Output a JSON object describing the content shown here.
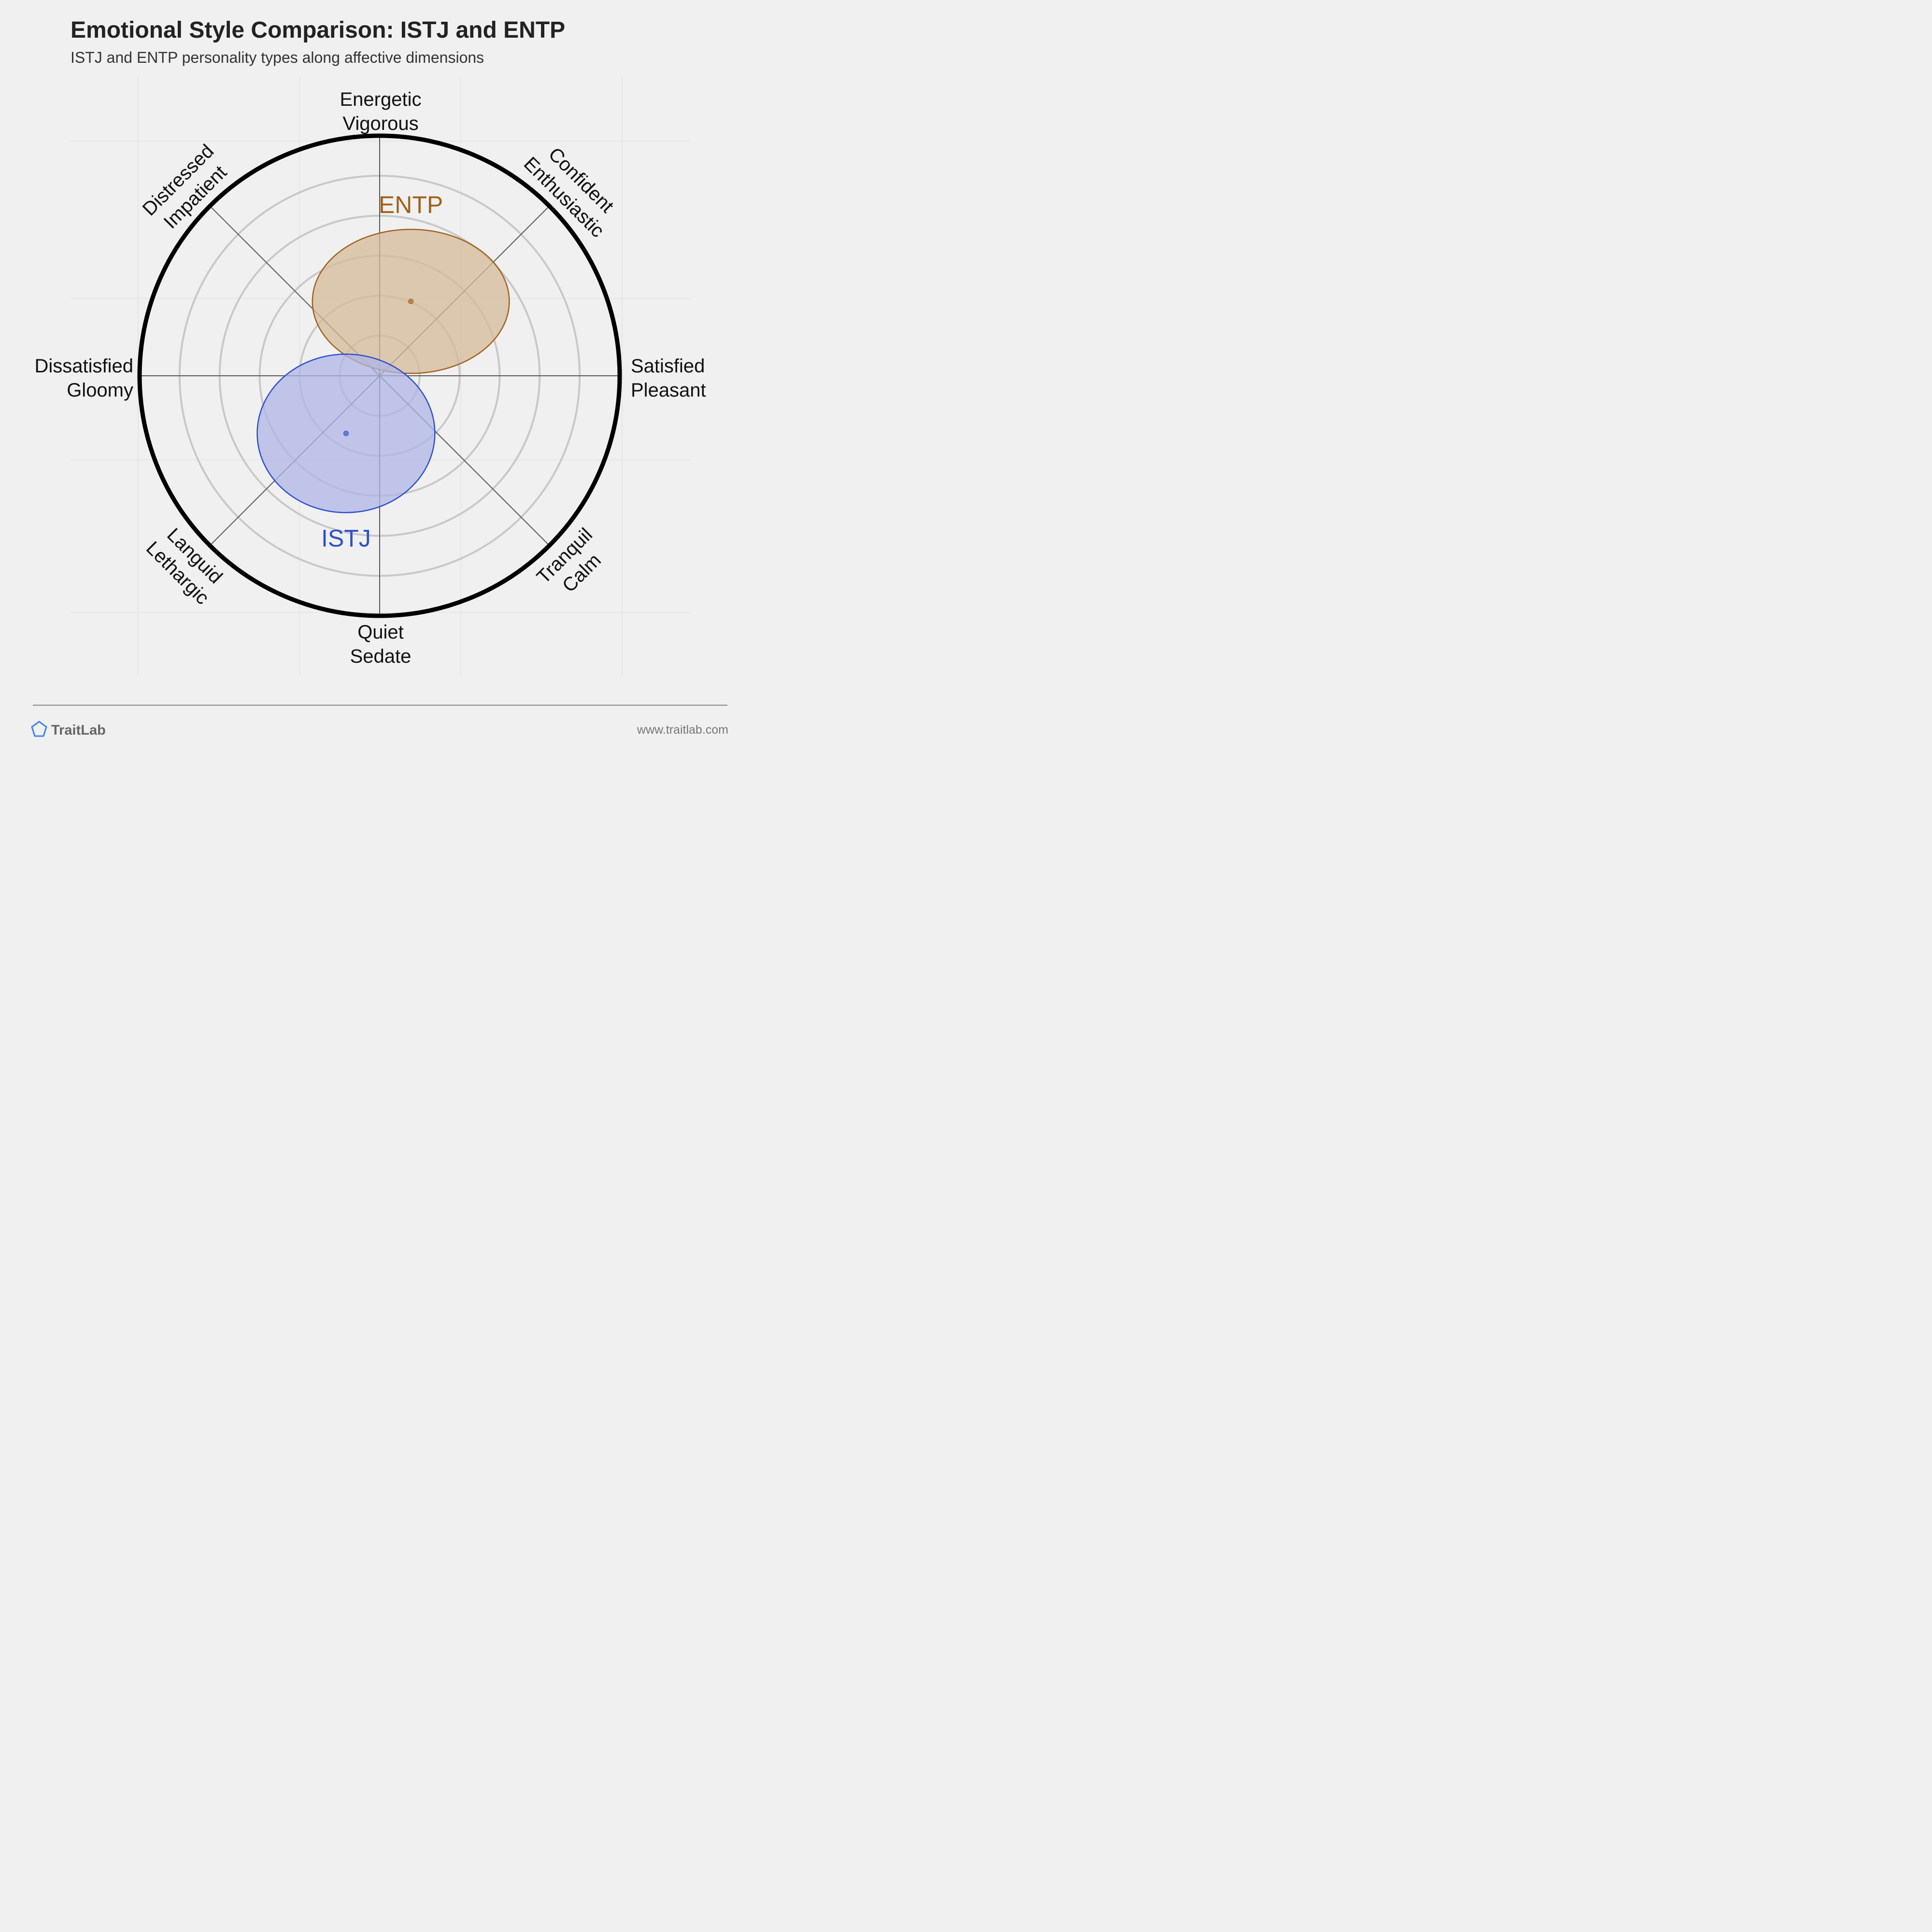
{
  "title": "Emotional Style Comparison: ISTJ and ENTP",
  "subtitle": "ISTJ and ENTP personality types along affective dimensions",
  "brand": {
    "name": "TraitLab",
    "url": "www.traitlab.com",
    "icon": "pentagon-icon"
  },
  "chart_data": {
    "type": "scatter",
    "description_axes": {
      "x": "Dissatisfied/Gloomy (-) to Satisfied/Pleasant (+)",
      "y": "Quiet/Sedate (-) to Energetic/Vigorous (+)"
    },
    "xlim": [
      -1,
      1
    ],
    "ylim": [
      -1,
      1
    ],
    "axis_labels": [
      {
        "id": "top",
        "lines": [
          "Energetic",
          "Vigorous"
        ]
      },
      {
        "id": "top-right",
        "lines": [
          "Confident",
          "Enthusiastic"
        ]
      },
      {
        "id": "right",
        "lines": [
          "Satisfied",
          "Pleasant"
        ]
      },
      {
        "id": "bottom-right",
        "lines": [
          "Tranquil",
          "Calm"
        ]
      },
      {
        "id": "bottom",
        "lines": [
          "Quiet",
          "Sedate"
        ]
      },
      {
        "id": "bottom-left",
        "lines": [
          "Languid",
          "Lethargic"
        ]
      },
      {
        "id": "left",
        "lines": [
          "Dissatisfied",
          "Gloomy"
        ]
      },
      {
        "id": "top-left",
        "lines": [
          "Distressed",
          "Impatient"
        ]
      }
    ],
    "series": [
      {
        "name": "ENTP",
        "x": 0.13,
        "y": 0.31,
        "rx": 0.41,
        "ry": 0.3,
        "color": "#a0611b",
        "fill": "#d6bb9a"
      },
      {
        "name": "ISTJ",
        "x": -0.14,
        "y": -0.24,
        "rx": 0.37,
        "ry": 0.33,
        "color": "#2c4fcf",
        "fill": "#afb5e6"
      }
    ],
    "rings": 6,
    "grid": true
  },
  "colors": {
    "background": "#f0f0f0",
    "ring": "#c8c8c8",
    "outer_ring": "#000000",
    "axis_line": "#555555"
  }
}
